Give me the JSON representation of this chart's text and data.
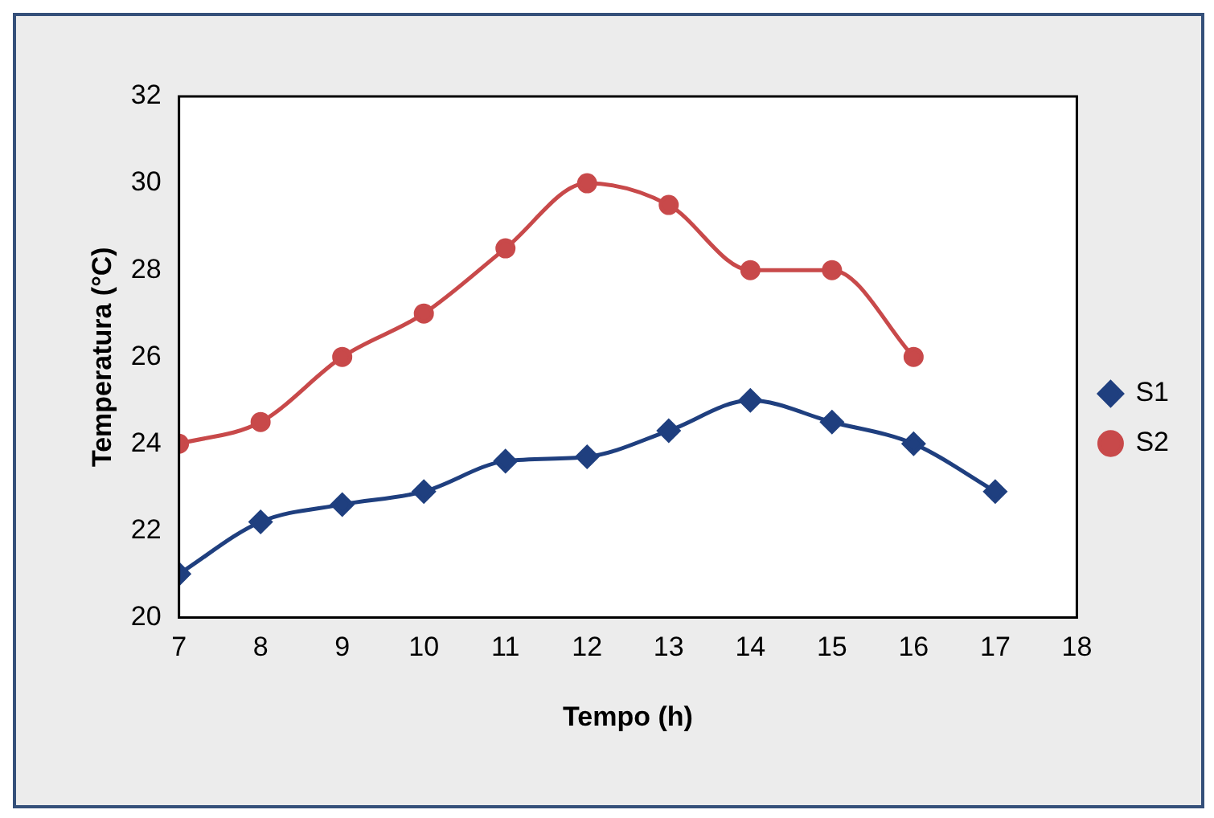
{
  "chart_data": {
    "type": "line",
    "xlabel": "Tempo (h)",
    "ylabel": "Temperatura (°C)",
    "x": [
      7,
      8,
      9,
      10,
      11,
      12,
      13,
      14,
      15,
      16,
      17
    ],
    "series": [
      {
        "name": "S1",
        "color": "#1f3f7f",
        "marker": "diamond",
        "values": [
          21,
          22.2,
          22.6,
          22.9,
          23.6,
          23.7,
          24.3,
          25,
          24.5,
          24,
          22.9
        ]
      },
      {
        "name": "S2",
        "color": "#c8494a",
        "marker": "circle",
        "values": [
          24,
          24.5,
          26,
          27,
          28.5,
          30,
          29.5,
          28,
          28,
          26,
          null
        ]
      }
    ],
    "xlim": [
      7,
      18
    ],
    "xticks": [
      7,
      8,
      9,
      10,
      11,
      12,
      13,
      14,
      15,
      16,
      17,
      18
    ],
    "ylim": [
      20,
      32
    ],
    "yticks": [
      20,
      22,
      24,
      26,
      28,
      30,
      32
    ],
    "grid": false,
    "legend": "right"
  }
}
